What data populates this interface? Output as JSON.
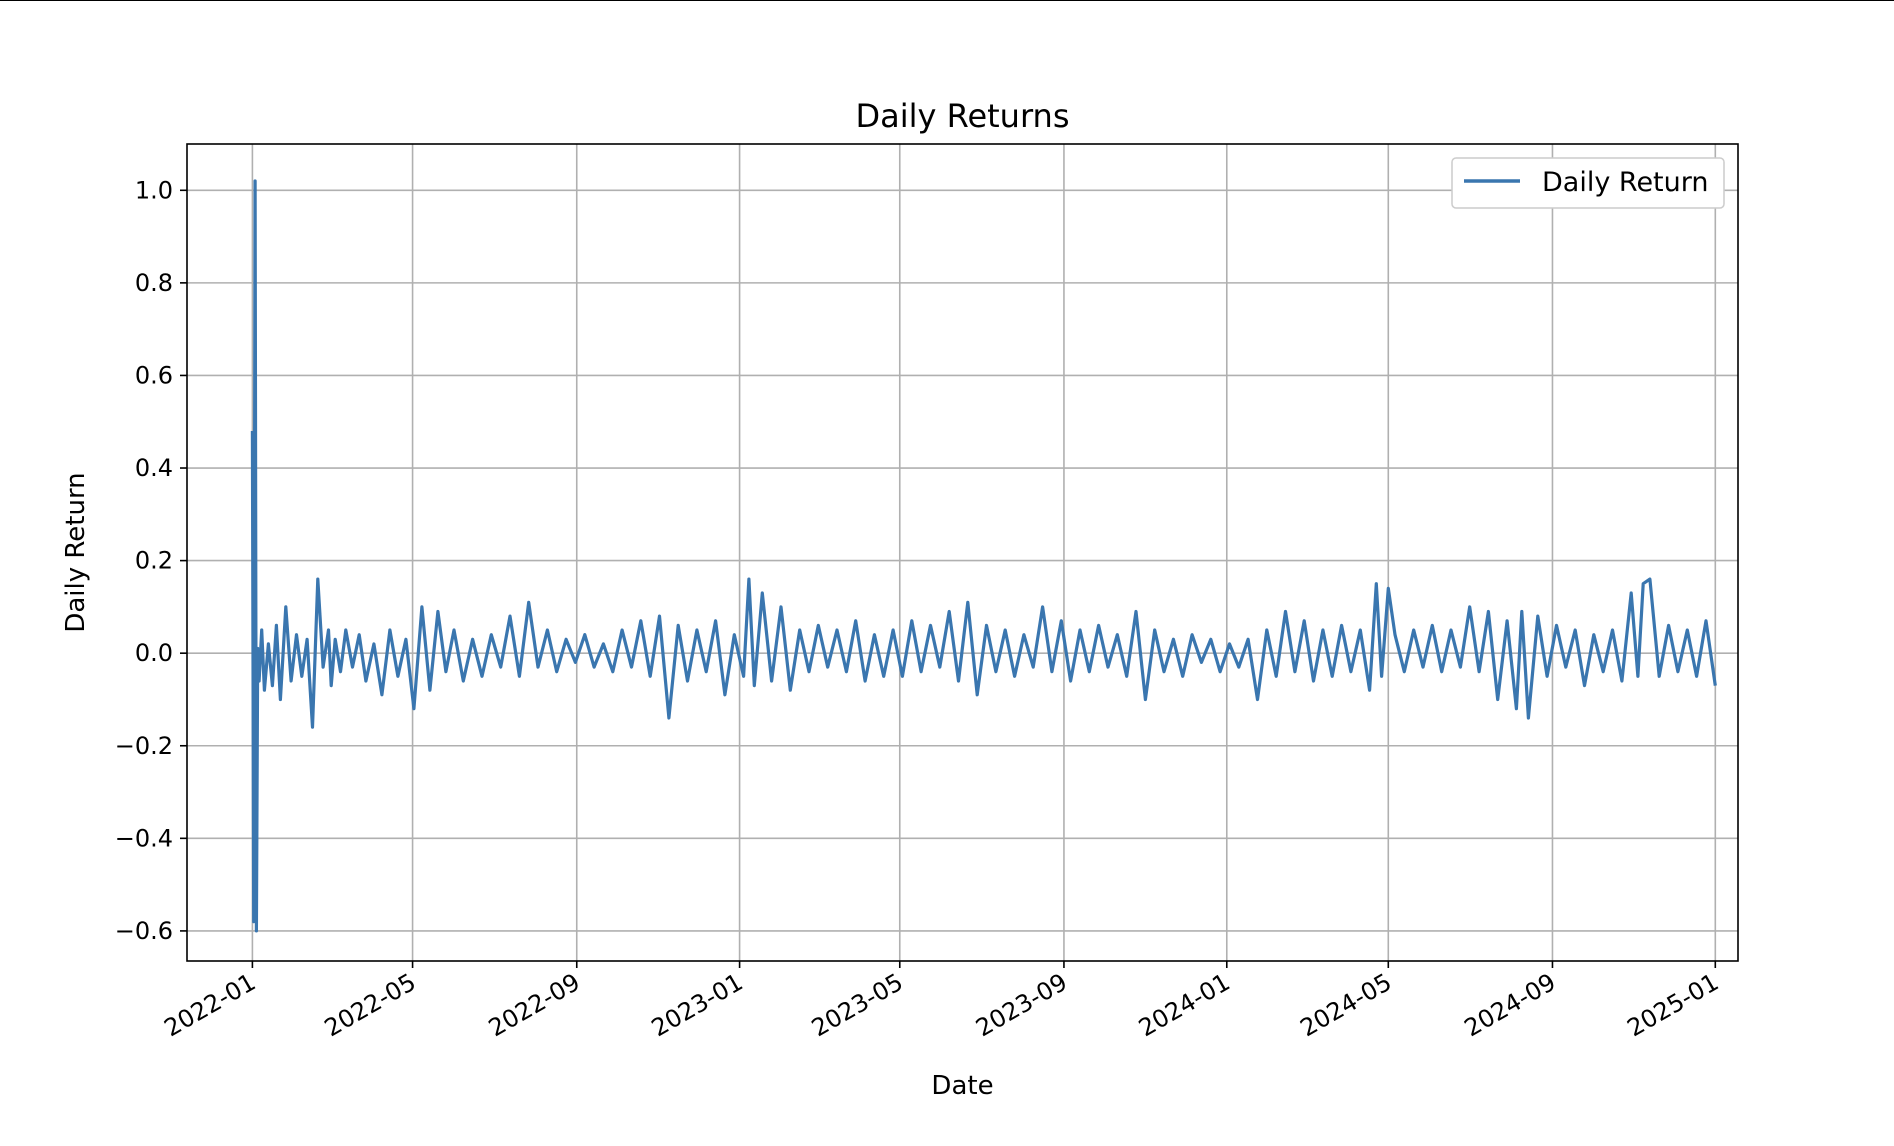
{
  "chart_data": {
    "type": "line",
    "title": "Daily Returns",
    "xlabel": "Date",
    "ylabel": "Daily Return",
    "x_range": [
      "2021-11-13",
      "2025-01-18"
    ],
    "ylim": [
      -0.665,
      1.1
    ],
    "grid": true,
    "legend_position": "top-right",
    "x_ticks": [
      "2022-01",
      "2022-05",
      "2022-09",
      "2023-01",
      "2023-05",
      "2023-09",
      "2024-01",
      "2024-05",
      "2024-09",
      "2025-01"
    ],
    "y_ticks": [
      1.0,
      0.8,
      0.6,
      0.4,
      0.2,
      0.0,
      -0.2,
      -0.4,
      -0.6
    ],
    "y_tick_labels": [
      "1.0",
      "0.8",
      "0.6",
      "0.4",
      "0.2",
      "0.0",
      "−0.2",
      "−0.4",
      "−0.6"
    ],
    "series": [
      {
        "name": "Daily Return",
        "color": "#3a76af",
        "x": [
          "2022-01-01",
          "2022-01-02",
          "2022-01-03",
          "2022-01-04",
          "2022-01-05",
          "2022-01-06",
          "2022-01-08",
          "2022-01-10",
          "2022-01-13",
          "2022-01-16",
          "2022-01-19",
          "2022-01-22",
          "2022-01-26",
          "2022-01-30",
          "2022-02-03",
          "2022-02-07",
          "2022-02-11",
          "2022-02-15",
          "2022-02-19",
          "2022-02-23",
          "2022-02-27",
          "2022-03-01",
          "2022-03-04",
          "2022-03-08",
          "2022-03-12",
          "2022-03-17",
          "2022-03-22",
          "2022-03-27",
          "2022-04-02",
          "2022-04-08",
          "2022-04-14",
          "2022-04-20",
          "2022-04-26",
          "2022-05-02",
          "2022-05-08",
          "2022-05-14",
          "2022-05-20",
          "2022-05-26",
          "2022-06-01",
          "2022-06-08",
          "2022-06-15",
          "2022-06-22",
          "2022-06-29",
          "2022-07-06",
          "2022-07-13",
          "2022-07-20",
          "2022-07-27",
          "2022-08-03",
          "2022-08-10",
          "2022-08-17",
          "2022-08-24",
          "2022-08-31",
          "2022-09-07",
          "2022-09-14",
          "2022-09-21",
          "2022-09-28",
          "2022-10-05",
          "2022-10-12",
          "2022-10-19",
          "2022-10-26",
          "2022-11-02",
          "2022-11-09",
          "2022-11-16",
          "2022-11-23",
          "2022-11-30",
          "2022-12-07",
          "2022-12-14",
          "2022-12-21",
          "2022-12-28",
          "2023-01-04",
          "2023-01-08",
          "2023-01-12",
          "2023-01-18",
          "2023-01-25",
          "2023-02-01",
          "2023-02-08",
          "2023-02-15",
          "2023-02-22",
          "2023-03-01",
          "2023-03-08",
          "2023-03-15",
          "2023-03-22",
          "2023-03-29",
          "2023-04-05",
          "2023-04-12",
          "2023-04-19",
          "2023-04-26",
          "2023-05-03",
          "2023-05-10",
          "2023-05-17",
          "2023-05-24",
          "2023-05-31",
          "2023-06-07",
          "2023-06-14",
          "2023-06-21",
          "2023-06-28",
          "2023-07-05",
          "2023-07-12",
          "2023-07-19",
          "2023-07-26",
          "2023-08-02",
          "2023-08-09",
          "2023-08-16",
          "2023-08-23",
          "2023-08-30",
          "2023-09-06",
          "2023-09-13",
          "2023-09-20",
          "2023-09-27",
          "2023-10-04",
          "2023-10-11",
          "2023-10-18",
          "2023-10-25",
          "2023-11-01",
          "2023-11-08",
          "2023-11-15",
          "2023-11-22",
          "2023-11-29",
          "2023-12-06",
          "2023-12-13",
          "2023-12-20",
          "2023-12-27",
          "2024-01-03",
          "2024-01-10",
          "2024-01-17",
          "2024-01-24",
          "2024-01-31",
          "2024-02-07",
          "2024-02-14",
          "2024-02-21",
          "2024-02-28",
          "2024-03-06",
          "2024-03-13",
          "2024-03-20",
          "2024-03-27",
          "2024-04-03",
          "2024-04-10",
          "2024-04-17",
          "2024-04-22",
          "2024-04-26",
          "2024-05-01",
          "2024-05-06",
          "2024-05-13",
          "2024-05-20",
          "2024-05-27",
          "2024-06-03",
          "2024-06-10",
          "2024-06-17",
          "2024-06-24",
          "2024-07-01",
          "2024-07-08",
          "2024-07-15",
          "2024-07-22",
          "2024-07-29",
          "2024-08-05",
          "2024-08-09",
          "2024-08-14",
          "2024-08-21",
          "2024-08-28",
          "2024-09-04",
          "2024-09-11",
          "2024-09-18",
          "2024-09-25",
          "2024-10-02",
          "2024-10-09",
          "2024-10-16",
          "2024-10-23",
          "2024-10-30",
          "2024-11-04",
          "2024-11-08",
          "2024-11-13",
          "2024-11-20",
          "2024-11-27",
          "2024-12-04",
          "2024-12-11",
          "2024-12-18",
          "2024-12-25",
          "2025-01-01"
        ],
        "y": [
          0.48,
          -0.58,
          1.02,
          -0.6,
          0.01,
          -0.06,
          0.05,
          -0.08,
          0.02,
          -0.07,
          0.06,
          -0.1,
          0.1,
          -0.06,
          0.04,
          -0.05,
          0.03,
          -0.16,
          0.16,
          -0.03,
          0.05,
          -0.07,
          0.03,
          -0.04,
          0.05,
          -0.03,
          0.04,
          -0.06,
          0.02,
          -0.09,
          0.05,
          -0.05,
          0.03,
          -0.12,
          0.1,
          -0.08,
          0.09,
          -0.04,
          0.05,
          -0.06,
          0.03,
          -0.05,
          0.04,
          -0.03,
          0.08,
          -0.05,
          0.11,
          -0.03,
          0.05,
          -0.04,
          0.03,
          -0.02,
          0.04,
          -0.03,
          0.02,
          -0.04,
          0.05,
          -0.03,
          0.07,
          -0.05,
          0.08,
          -0.14,
          0.06,
          -0.06,
          0.05,
          -0.04,
          0.07,
          -0.09,
          0.04,
          -0.05,
          0.16,
          -0.07,
          0.13,
          -0.06,
          0.1,
          -0.08,
          0.05,
          -0.04,
          0.06,
          -0.03,
          0.05,
          -0.04,
          0.07,
          -0.06,
          0.04,
          -0.05,
          0.05,
          -0.05,
          0.07,
          -0.04,
          0.06,
          -0.03,
          0.09,
          -0.06,
          0.11,
          -0.09,
          0.06,
          -0.04,
          0.05,
          -0.05,
          0.04,
          -0.03,
          0.1,
          -0.04,
          0.07,
          -0.06,
          0.05,
          -0.04,
          0.06,
          -0.03,
          0.04,
          -0.05,
          0.09,
          -0.1,
          0.05,
          -0.04,
          0.03,
          -0.05,
          0.04,
          -0.02,
          0.03,
          -0.04,
          0.02,
          -0.03,
          0.03,
          -0.1,
          0.05,
          -0.05,
          0.09,
          -0.04,
          0.07,
          -0.06,
          0.05,
          -0.05,
          0.06,
          -0.04,
          0.05,
          -0.08,
          0.15,
          -0.05,
          0.14,
          0.04,
          -0.04,
          0.05,
          -0.03,
          0.06,
          -0.04,
          0.05,
          -0.03,
          0.1,
          -0.04,
          0.09,
          -0.1,
          0.07,
          -0.12,
          0.09,
          -0.14,
          0.08,
          -0.05,
          0.06,
          -0.03,
          0.05,
          -0.07,
          0.04,
          -0.04,
          0.05,
          -0.06,
          0.13,
          -0.05,
          0.15,
          0.16,
          -0.05,
          0.06,
          -0.04,
          0.05,
          -0.05,
          0.07,
          -0.07
        ]
      }
    ]
  }
}
